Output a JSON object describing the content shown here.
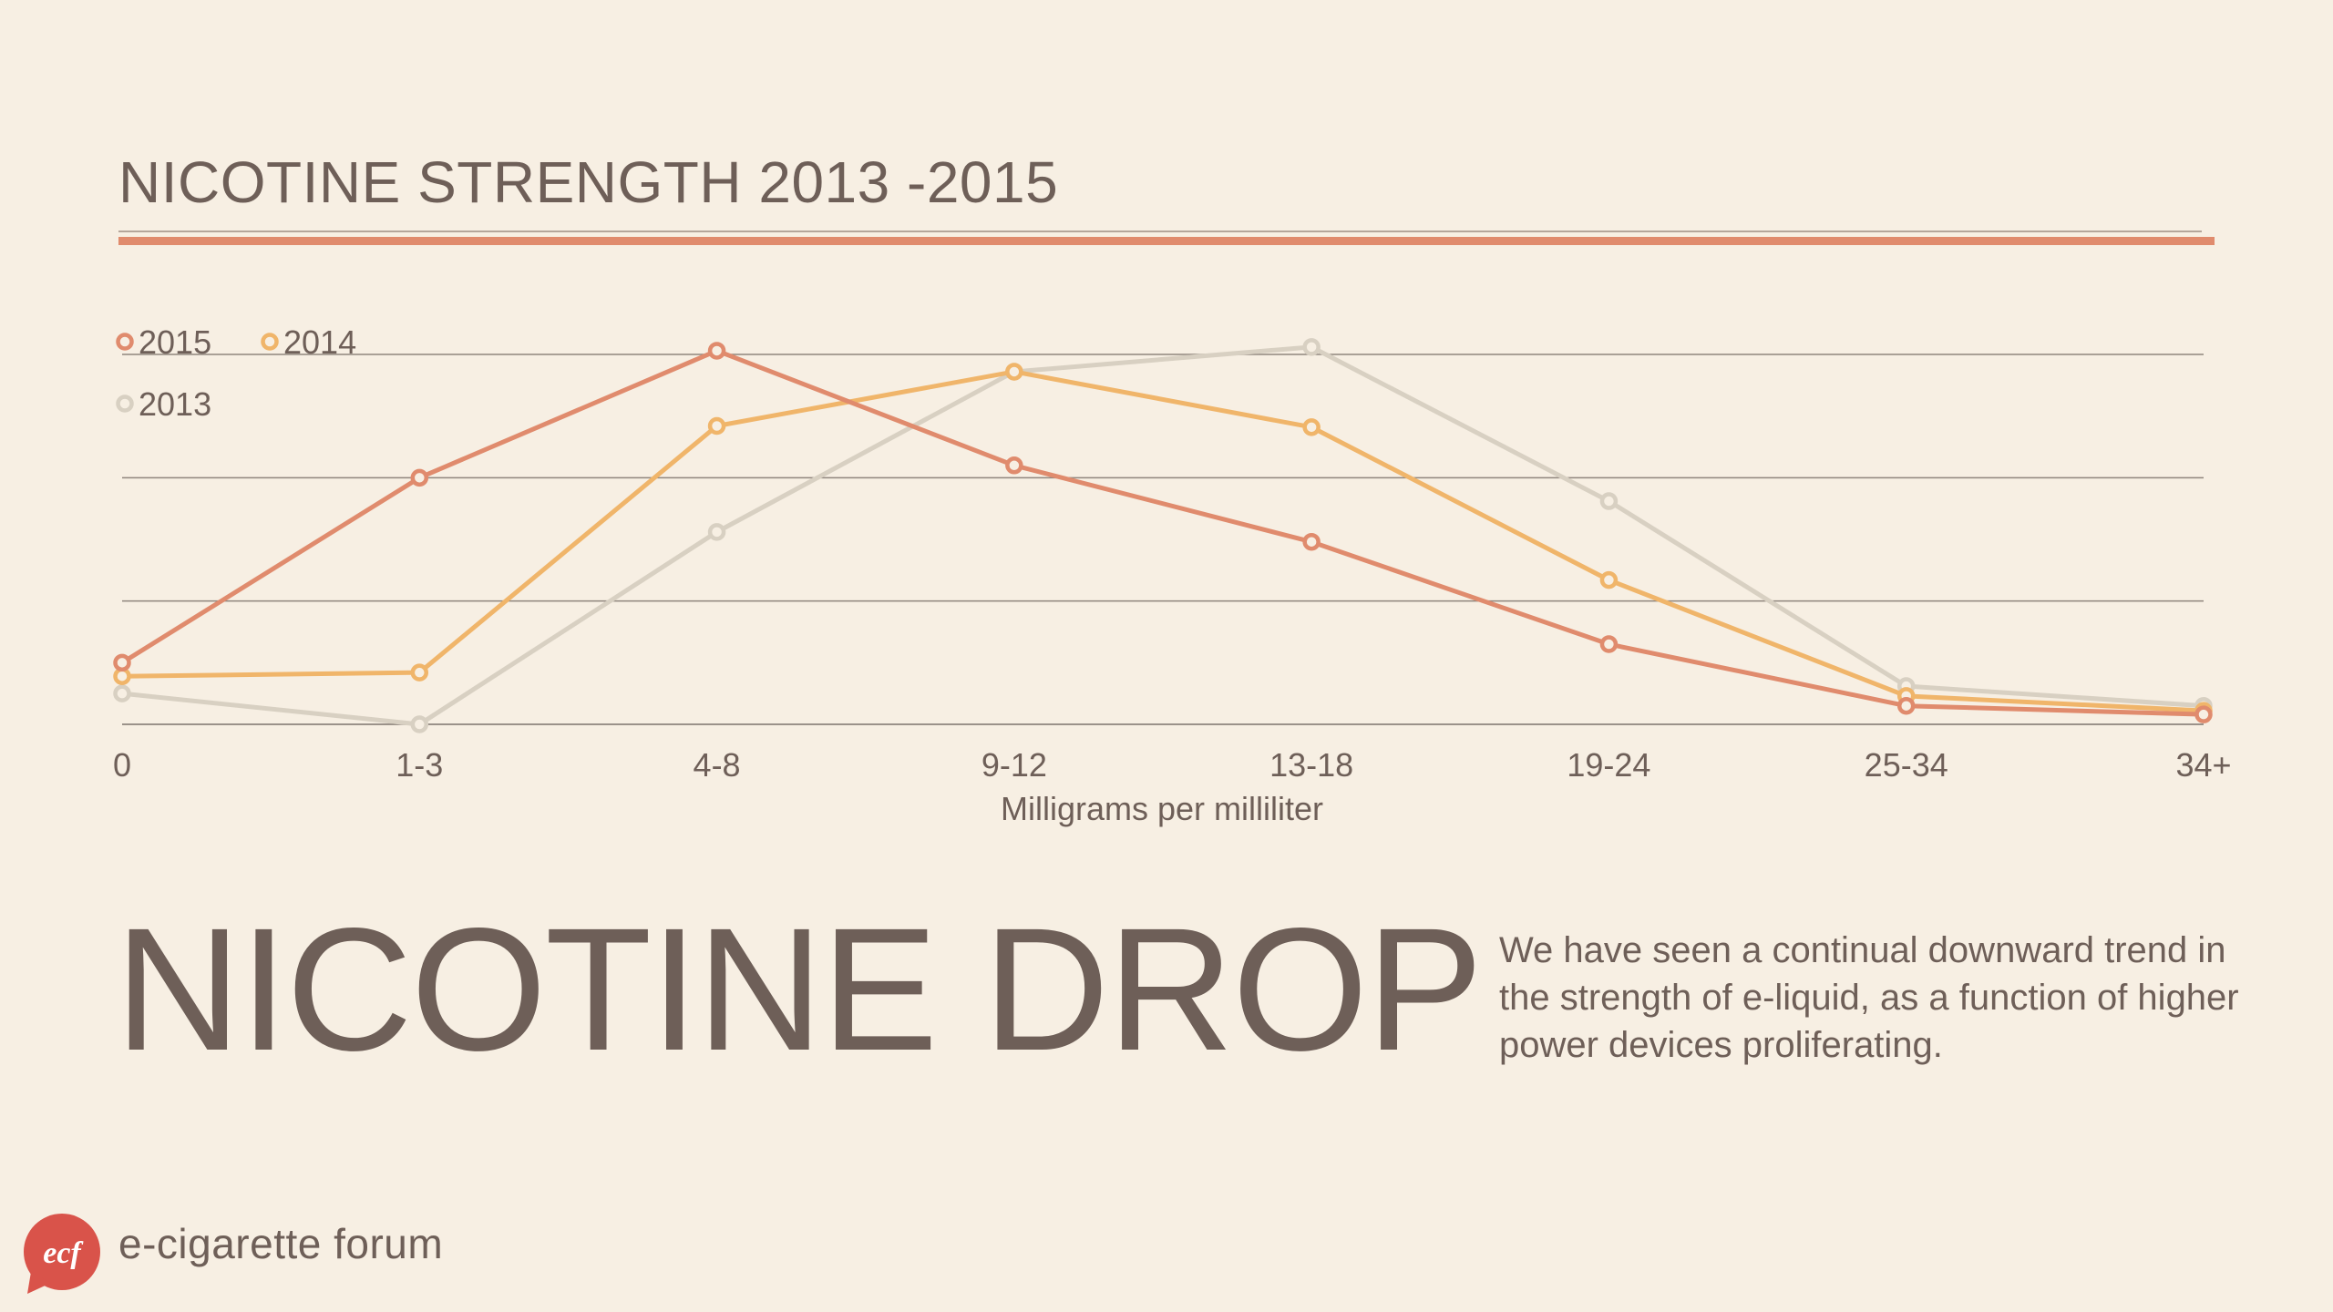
{
  "slide": {
    "title": "NICOTINE STRENGTH 2013 -2015",
    "heading": "NICOTINE DROP",
    "body": "We have seen a continual downward trend in the strength of e-liquid, as a function of higher power devices proliferating.",
    "logo_mark": "ecf",
    "logo_text": "e-cigarette forum"
  },
  "chart_data": {
    "type": "line",
    "categories": [
      "0",
      "1-3",
      "4-8",
      "9-12",
      "13-18",
      "19-24",
      "25-34",
      "34+"
    ],
    "xlabel": "Milligrams per milliliter",
    "ylabel": "",
    "ylim": [
      0,
      30
    ],
    "grid": true,
    "legend_position": "top-left",
    "series": [
      {
        "name": "2015",
        "color": "#e08b6d",
        "values": [
          5,
          20,
          30.3,
          21,
          14.8,
          6.5,
          1.5,
          0.8
        ]
      },
      {
        "name": "2014",
        "color": "#f0b56a",
        "values": [
          3.9,
          4.2,
          24.2,
          28.6,
          24.1,
          11.7,
          2.3,
          1.1
        ]
      },
      {
        "name": "2013",
        "color": "#d8d0c2",
        "values": [
          2.5,
          0,
          15.6,
          28.6,
          30.6,
          18.1,
          3.1,
          1.5
        ]
      }
    ]
  }
}
